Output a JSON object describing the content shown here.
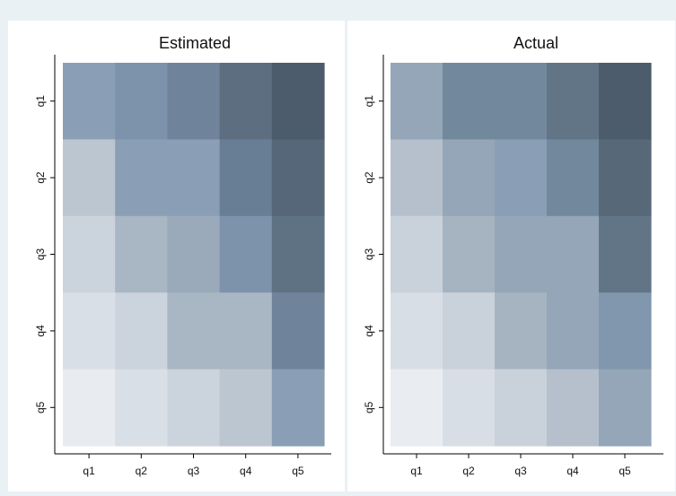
{
  "chart_data": [
    {
      "type": "heatmap",
      "title": "Estimated",
      "x_categories": [
        "q1",
        "q2",
        "q3",
        "q4",
        "q5"
      ],
      "y_categories": [
        "q1",
        "q2",
        "q3",
        "q4",
        "q5"
      ],
      "xlabel": "",
      "ylabel": "",
      "grid": false,
      "cells": [
        [
          "#8a9fb5",
          "#7c93ab",
          "#6f849b",
          "#5c6e80",
          "#4d5c6c"
        ],
        [
          "#bcc6d1",
          "#8a9fb5",
          "#8a9fb5",
          "#687e94",
          "#566779"
        ],
        [
          "#cbd3dd",
          "#a9b6c3",
          "#9aaabb",
          "#7d93ab",
          "#5f7284"
        ],
        [
          "#d9dfe6",
          "#cbd3dd",
          "#a9b6c3",
          "#a9b6c3",
          "#6f849b"
        ],
        [
          "#e8ecf0",
          "#d9dfe6",
          "#cbd3dd",
          "#bcc6d1",
          "#8a9fb5"
        ]
      ]
    },
    {
      "type": "heatmap",
      "title": "Actual",
      "x_categories": [
        "q1",
        "q2",
        "q3",
        "q4",
        "q5"
      ],
      "y_categories": [
        "q1",
        "q2",
        "q3",
        "q4",
        "q5"
      ],
      "xlabel": "",
      "ylabel": "",
      "grid": false,
      "cells": [
        [
          "#94a6b8",
          "#72889d",
          "#72889d",
          "#627587",
          "#4d5c6c"
        ],
        [
          "#b5c0cc",
          "#94a6b8",
          "#8a9fb5",
          "#72889d",
          "#576878"
        ],
        [
          "#c9d1da",
          "#a6b4c2",
          "#94a6b8",
          "#94a6b8",
          "#627587"
        ],
        [
          "#d8dee5",
          "#c9d1da",
          "#a6b4c2",
          "#94a6b8",
          "#8197ad"
        ],
        [
          "#e9edf1",
          "#d8dee5",
          "#c9d1da",
          "#b5c0cc",
          "#94a6b8"
        ]
      ]
    }
  ]
}
